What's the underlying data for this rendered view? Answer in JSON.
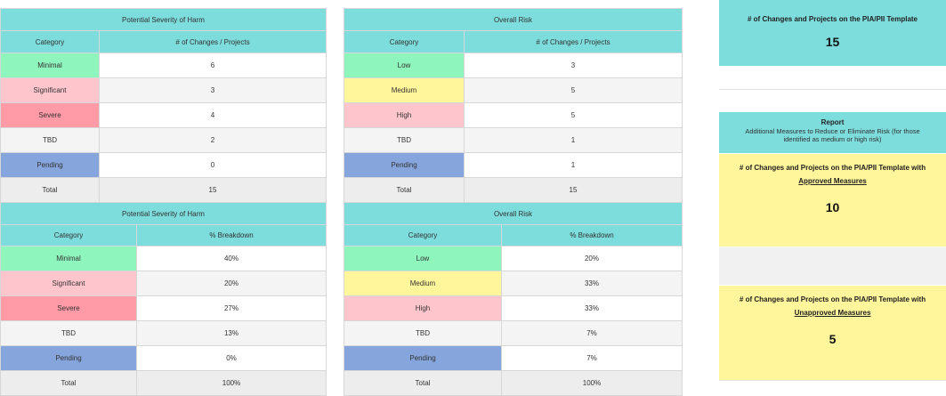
{
  "t1": {
    "title": "Potential Severity of Harm",
    "col1": "Category",
    "col2": "# of Changes / Projects",
    "rows": [
      {
        "cat": "Minimal",
        "val": "6"
      },
      {
        "cat": "Significant",
        "val": "3"
      },
      {
        "cat": "Severe",
        "val": "4"
      },
      {
        "cat": "TBD",
        "val": "2"
      },
      {
        "cat": "Pending",
        "val": "0"
      }
    ],
    "total_label": "Total",
    "total_val": "15"
  },
  "t2": {
    "title": "Overall Risk",
    "col1": "Category",
    "col2": "# of Changes / Projects",
    "rows": [
      {
        "cat": "Low",
        "val": "3"
      },
      {
        "cat": "Medium",
        "val": "5"
      },
      {
        "cat": "High",
        "val": "5"
      },
      {
        "cat": "TBD",
        "val": "1"
      },
      {
        "cat": "Pending",
        "val": "1"
      }
    ],
    "total_label": "Total",
    "total_val": "15"
  },
  "t3": {
    "title": "Potential Severity of Harm",
    "col1": "Category",
    "col2": "% Breakdown",
    "rows": [
      {
        "cat": "Minimal",
        "val": "40%"
      },
      {
        "cat": "Significant",
        "val": "20%"
      },
      {
        "cat": "Severe",
        "val": "27%"
      },
      {
        "cat": "TBD",
        "val": "13%"
      },
      {
        "cat": "Pending",
        "val": "0%"
      }
    ],
    "total_label": "Total",
    "total_val": "100%"
  },
  "t4": {
    "title": "Overall Risk",
    "col1": "Category",
    "col2": "% Breakdown",
    "rows": [
      {
        "cat": "Low",
        "val": "20%"
      },
      {
        "cat": "Medium",
        "val": "33%"
      },
      {
        "cat": "High",
        "val": "33%"
      },
      {
        "cat": "TBD",
        "val": "7%"
      },
      {
        "cat": "Pending",
        "val": "7%"
      }
    ],
    "total_label": "Total",
    "total_val": "100%"
  },
  "summary": {
    "title": "# of Changes and Projects on the PIA/PII Template",
    "count": "15"
  },
  "report": {
    "title": "Report",
    "subtitle_line1": "Additional Measures to Reduce or Eliminate Risk (for those",
    "subtitle_line2": "identified as medium or high risk)"
  },
  "approved": {
    "title": "# of Changes and Projects on the PIA/PII Template with",
    "link": "Approved Measures",
    "count": "10"
  },
  "unapproved": {
    "title": "# of Changes and Projects on the PIA/PII Template with",
    "link": "Unapproved Measures",
    "count": "5"
  },
  "colors": {
    "header_cyan": "#7ddcdc",
    "minimal_low": "#8ef5bd",
    "significant_high": "#ffc5cc",
    "severe": "#ff9aa6",
    "medium_yellow": "#fff59a",
    "pending_blue": "#86a5dc"
  }
}
